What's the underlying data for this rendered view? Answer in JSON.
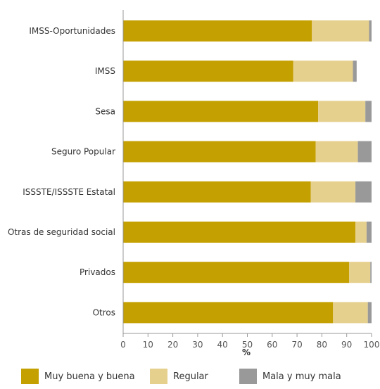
{
  "chart_data": {
    "type": "bar",
    "orientation": "horizontal",
    "stacked": true,
    "categories": [
      "IMSS-Oportunidades",
      "IMSS",
      "Sesa",
      "Seguro Popular",
      "ISSSTE/ISSSTE Estatal",
      "Otras de seguridad social",
      "Privados",
      "Otros"
    ],
    "series": [
      {
        "name": "Muy buena y buena",
        "color": "#C4A000",
        "values": [
          76,
          68.5,
          78.5,
          77.5,
          75.5,
          93.5,
          91,
          84.5
        ]
      },
      {
        "name": "Regular",
        "color": "#E6D08E",
        "values": [
          23,
          24,
          19,
          17,
          18,
          4.5,
          8.5,
          14
        ]
      },
      {
        "name": "Mala y muy mala",
        "color": "#999999",
        "values": [
          1,
          1.5,
          2.5,
          5.5,
          6.5,
          2,
          0.5,
          1.5
        ]
      }
    ],
    "xticks": [
      "0",
      "10",
      "20",
      "30",
      "40",
      "50",
      "60",
      "70",
      "80",
      "90",
      "100"
    ],
    "xlim": [
      0,
      100
    ],
    "xlabel": "%",
    "ylabel": "",
    "title": "",
    "grid": false,
    "legend_position": "bottom"
  }
}
